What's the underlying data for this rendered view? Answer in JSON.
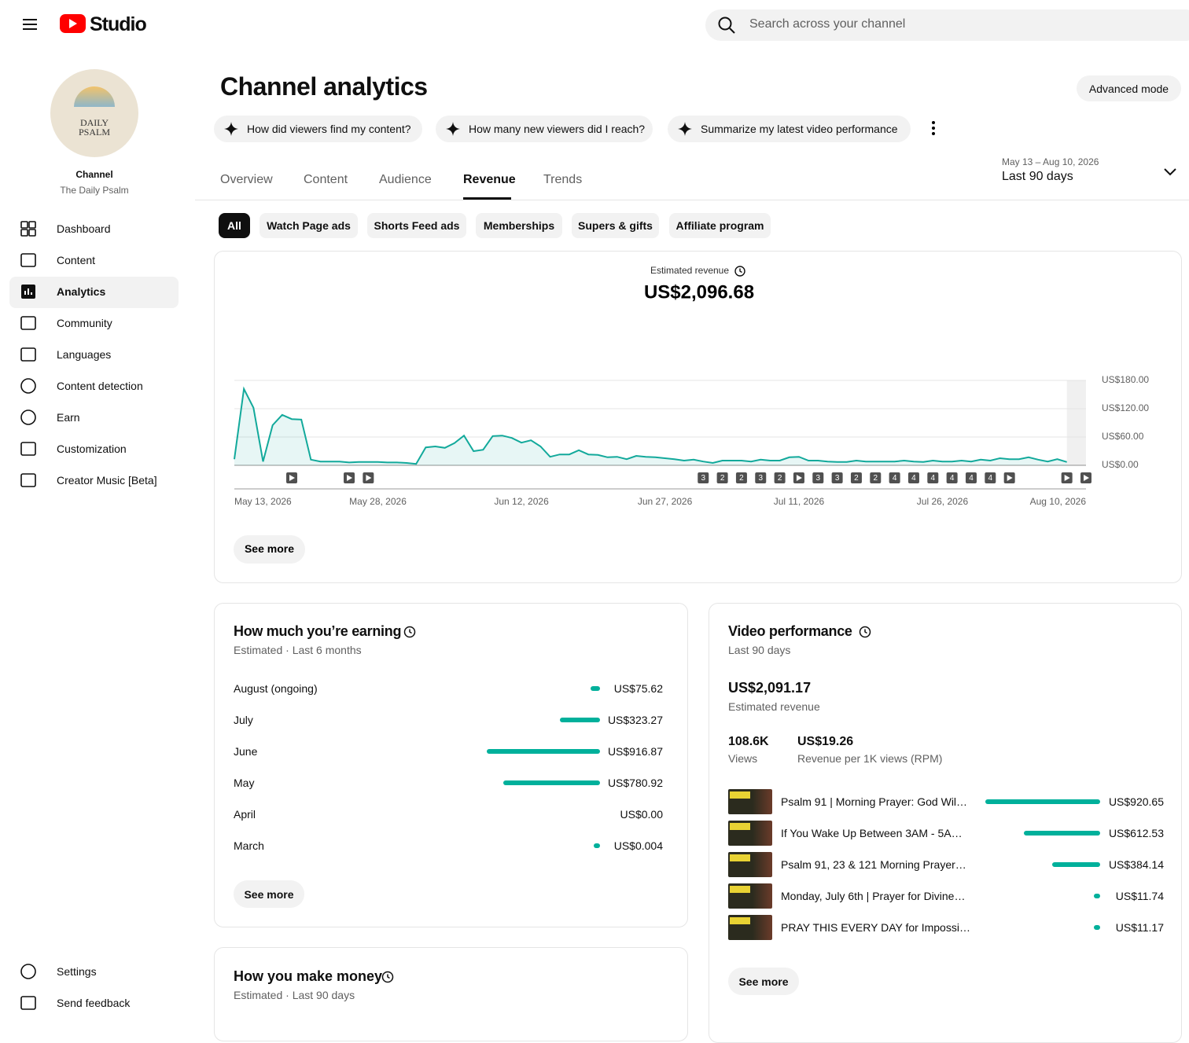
{
  "header": {
    "logo": "Studio",
    "search_placeholder": "Search across your channel"
  },
  "sidebar": {
    "avatar_text": "DAILY PSALM",
    "channel_label": "Channel",
    "channel_name": "The Daily Psalm",
    "nav": [
      "Dashboard",
      "Content",
      "Analytics",
      "Community",
      "Languages",
      "Content detection",
      "Earn",
      "Customization",
      "Creator Music [Beta]"
    ],
    "bottom_nav": [
      "Settings",
      "Send feedback"
    ]
  },
  "page": {
    "title": "Channel analytics",
    "advanced_mode": "Advanced mode",
    "suggestions": [
      "How did viewers find my content?",
      "How many new viewers did I reach?",
      "Summarize my latest video performance"
    ],
    "tabs": [
      "Overview",
      "Content",
      "Audience",
      "Revenue",
      "Trends"
    ],
    "date_range": "May 13 – Aug 10, 2026",
    "period": "Last 90 days",
    "filters": [
      "All",
      "Watch Page ads",
      "Shorts Feed ads",
      "Memberships",
      "Supers & gifts",
      "Affiliate program"
    ]
  },
  "chart_data": [
    {
      "type": "line",
      "title": "Estimated revenue",
      "total": "US$2,096.68",
      "color": "#12a99b",
      "x": [
        "2026-05-13",
        "2026-05-14",
        "2026-05-15",
        "2026-05-16",
        "2026-05-17",
        "2026-05-18",
        "2026-05-19",
        "2026-05-20",
        "2026-05-21",
        "2026-05-22",
        "2026-05-23",
        "2026-05-24",
        "2026-05-25",
        "2026-05-26",
        "2026-05-27",
        "2026-05-28",
        "2026-05-29",
        "2026-05-30",
        "2026-05-31",
        "2026-06-01",
        "2026-06-02",
        "2026-06-03",
        "2026-06-04",
        "2026-06-05",
        "2026-06-06",
        "2026-06-07",
        "2026-06-08",
        "2026-06-09",
        "2026-06-10",
        "2026-06-11",
        "2026-06-12",
        "2026-06-13",
        "2026-06-14",
        "2026-06-15",
        "2026-06-16",
        "2026-06-17",
        "2026-06-18",
        "2026-06-19",
        "2026-06-20",
        "2026-06-21",
        "2026-06-22",
        "2026-06-23",
        "2026-06-24",
        "2026-06-25",
        "2026-06-26",
        "2026-06-27",
        "2026-06-28",
        "2026-06-29",
        "2026-06-30",
        "2026-07-01",
        "2026-07-02",
        "2026-07-03",
        "2026-07-04",
        "2026-07-05",
        "2026-07-06",
        "2026-07-07",
        "2026-07-08",
        "2026-07-09",
        "2026-07-10",
        "2026-07-11",
        "2026-07-12",
        "2026-07-13",
        "2026-07-14",
        "2026-07-15",
        "2026-07-16",
        "2026-07-17",
        "2026-07-18",
        "2026-07-19",
        "2026-07-20",
        "2026-07-21",
        "2026-07-22",
        "2026-07-23",
        "2026-07-24",
        "2026-07-25",
        "2026-07-26",
        "2026-07-27",
        "2026-07-28",
        "2026-07-29",
        "2026-07-30",
        "2026-07-31",
        "2026-08-01",
        "2026-08-02",
        "2026-08-03",
        "2026-08-04",
        "2026-08-05",
        "2026-08-06",
        "2026-08-07",
        "2026-08-08",
        "2026-08-09",
        "2026-08-10"
      ],
      "values": [
        13,
        162,
        122,
        8,
        85,
        107,
        98,
        97,
        12,
        8,
        8,
        8,
        6,
        7,
        7,
        7,
        6,
        6,
        5,
        3,
        38,
        40,
        37,
        47,
        63,
        30,
        33,
        62,
        63,
        58,
        48,
        53,
        40,
        18,
        23,
        23,
        32,
        23,
        22,
        17,
        18,
        13,
        20,
        18,
        17,
        15,
        13,
        10,
        12,
        8,
        5,
        10,
        10,
        10,
        8,
        12,
        10,
        10,
        17,
        18,
        10,
        10,
        8,
        7,
        7,
        10,
        8,
        8,
        8,
        8,
        10,
        8,
        7,
        10,
        8,
        8,
        10,
        8,
        12,
        10,
        15,
        13,
        13,
        17,
        12,
        8,
        13,
        7,
        null,
        null
      ],
      "ylim": [
        0,
        180
      ],
      "yticks": [
        {
          "value": 0,
          "label": "US$0.00"
        },
        {
          "value": 60,
          "label": "US$60.00"
        },
        {
          "value": 120,
          "label": "US$120.00"
        },
        {
          "value": 180,
          "label": "US$180.00"
        }
      ],
      "xticks": [
        {
          "value": "2026-05-13",
          "label": "May 13, 2026"
        },
        {
          "value": "2026-05-28",
          "label": "May 28, 2026"
        },
        {
          "value": "2026-06-12",
          "label": "Jun 12, 2026"
        },
        {
          "value": "2026-06-27",
          "label": "Jun 27, 2026"
        },
        {
          "value": "2026-07-11",
          "label": "Jul 11, 2026"
        },
        {
          "value": "2026-07-26",
          "label": "Jul 26, 2026"
        },
        {
          "value": "2026-08-10",
          "label": "Aug 10, 2026"
        }
      ],
      "grid": true,
      "upload_markers": [
        {
          "x": "2026-05-19"
        },
        {
          "x": "2026-05-25"
        },
        {
          "x": "2026-05-27"
        },
        {
          "x": "2026-07-01",
          "count": 3
        },
        {
          "x": "2026-07-03",
          "count": 2
        },
        {
          "x": "2026-07-05",
          "count": 2
        },
        {
          "x": "2026-07-07",
          "count": 3
        },
        {
          "x": "2026-07-09",
          "count": 2
        },
        {
          "x": "2026-07-11"
        },
        {
          "x": "2026-07-13",
          "count": 3
        },
        {
          "x": "2026-07-15",
          "count": 3
        },
        {
          "x": "2026-07-17",
          "count": 2
        },
        {
          "x": "2026-07-19",
          "count": 2
        },
        {
          "x": "2026-07-21",
          "count": 4
        },
        {
          "x": "2026-07-23",
          "count": 4
        },
        {
          "x": "2026-07-25",
          "count": 4
        },
        {
          "x": "2026-07-27",
          "count": 4
        },
        {
          "x": "2026-07-29",
          "count": 4
        },
        {
          "x": "2026-07-31",
          "count": 4
        },
        {
          "x": "2026-08-02"
        },
        {
          "x": "2026-08-08"
        },
        {
          "x": "2026-08-10"
        }
      ],
      "see_more": "See more"
    },
    {
      "type": "bar",
      "title": "How much you’re earning",
      "subtitle": "Estimated · Last 6 months",
      "color": "#00b09b",
      "categories": [
        "August (ongoing)",
        "July",
        "June",
        "May",
        "April",
        "March"
      ],
      "values": [
        75.62,
        323.27,
        916.87,
        780.92,
        0,
        0.004
      ],
      "value_labels": [
        "US$75.62",
        "US$323.27",
        "US$916.87",
        "US$780.92",
        "US$0.00",
        "US$0.004"
      ],
      "see_more": "See more"
    },
    {
      "type": "bar",
      "title": "Video performance",
      "subtitle": "Last 90 days",
      "total": "US$2,091.17",
      "total_caption": "Estimated revenue",
      "stats": [
        {
          "value": "108.6K",
          "label": "Views"
        },
        {
          "value": "US$19.26",
          "label": "Revenue per 1K views (RPM)"
        }
      ],
      "color": "#00b09b",
      "categories": [
        "Psalm 91 | Morning Prayer: God Wil…",
        "If You Wake Up Between 3AM - 5A…",
        "Psalm 91, 23 & 121 Morning Prayer…",
        "Monday, July 6th | Prayer for Divine…",
        "PRAY THIS EVERY DAY for Impossi…"
      ],
      "values": [
        920.65,
        612.53,
        384.14,
        11.74,
        11.17
      ],
      "value_labels": [
        "US$920.65",
        "US$612.53",
        "US$384.14",
        "US$11.74",
        "US$11.17"
      ],
      "see_more": "See more"
    }
  ],
  "make_money": {
    "title": "How you make money",
    "subtitle": "Estimated · Last 90 days"
  }
}
